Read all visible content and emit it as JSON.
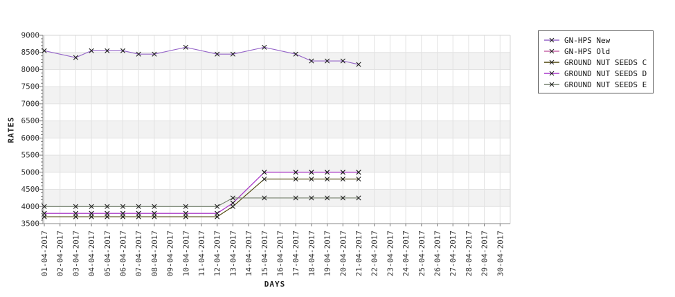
{
  "chart_data": {
    "type": "line",
    "title": "",
    "xlabel": "DAYS",
    "ylabel": "RATES",
    "ylim": [
      3500,
      9000
    ],
    "y_ticks": [
      3500,
      4000,
      4500,
      5000,
      5500,
      6000,
      6500,
      7000,
      7500,
      8000,
      8500,
      9000
    ],
    "y_minor_step": 100,
    "grid": true,
    "band_colors": [
      "#ffffff",
      "#f2f2f2"
    ],
    "grid_color": "#e2e2e2",
    "axis_color": "#8a8a8a",
    "border_color": "#d4d4d4",
    "marker": "x",
    "marker_color": "#222222",
    "legend_position": "top-right",
    "x_categories": [
      "01-04-2017",
      "02-04-2017",
      "03-04-2017",
      "04-04-2017",
      "05-04-2017",
      "06-04-2017",
      "07-04-2017",
      "08-04-2017",
      "09-04-2017",
      "10-04-2017",
      "11-04-2017",
      "12-04-2017",
      "13-04-2017",
      "14-04-2017",
      "15-04-2017",
      "16-04-2017",
      "17-04-2017",
      "18-04-2017",
      "19-04-2017",
      "20-04-2017",
      "21-04-2017",
      "22-04-2017",
      "23-04-2017",
      "24-04-2017",
      "25-04-2017",
      "26-04-2017",
      "27-04-2017",
      "28-04-2017",
      "29-04-2017",
      "30-04-2017"
    ],
    "x": [
      "01-04-2017",
      "03-04-2017",
      "04-04-2017",
      "05-04-2017",
      "06-04-2017",
      "07-04-2017",
      "08-04-2017",
      "10-04-2017",
      "12-04-2017",
      "13-04-2017",
      "15-04-2017",
      "17-04-2017",
      "18-04-2017",
      "19-04-2017",
      "20-04-2017",
      "21-04-2017"
    ],
    "series": [
      {
        "name": "GN-HPS New",
        "color": "#9565c8",
        "values": [
          8550,
          8350,
          8550,
          8550,
          8550,
          8450,
          8450,
          8650,
          8450,
          8450,
          8650,
          8450,
          8250,
          8250,
          8250,
          8150
        ]
      },
      {
        "name": "GN-HPS Old",
        "color": "#c868a8",
        "values": [
          3800,
          3800,
          3800,
          3800,
          3800,
          3800,
          3800,
          3800,
          3800,
          4100,
          5000,
          5000,
          5000,
          5000,
          5000,
          5000
        ]
      },
      {
        "name": "GROUND NUT SEEDS C",
        "color": "#4d4408",
        "values": [
          3700,
          3700,
          3700,
          3700,
          3700,
          3700,
          3700,
          3700,
          3700,
          4000,
          4800,
          4800,
          4800,
          4800,
          4800,
          4800
        ]
      },
      {
        "name": "GROUND NUT SEEDS D",
        "color": "#a838cc",
        "values": [
          3800,
          3800,
          3800,
          3800,
          3800,
          3800,
          3800,
          3800,
          3800,
          4100,
          5000,
          5000,
          5000,
          5000,
          5000,
          5000
        ]
      },
      {
        "name": "GROUND NUT SEEDS E",
        "color": "#75816e",
        "values": [
          4000,
          4000,
          4000,
          4000,
          4000,
          4000,
          4000,
          4000,
          4000,
          4250,
          4250,
          4250,
          4250,
          4250,
          4250,
          4250
        ]
      }
    ]
  }
}
